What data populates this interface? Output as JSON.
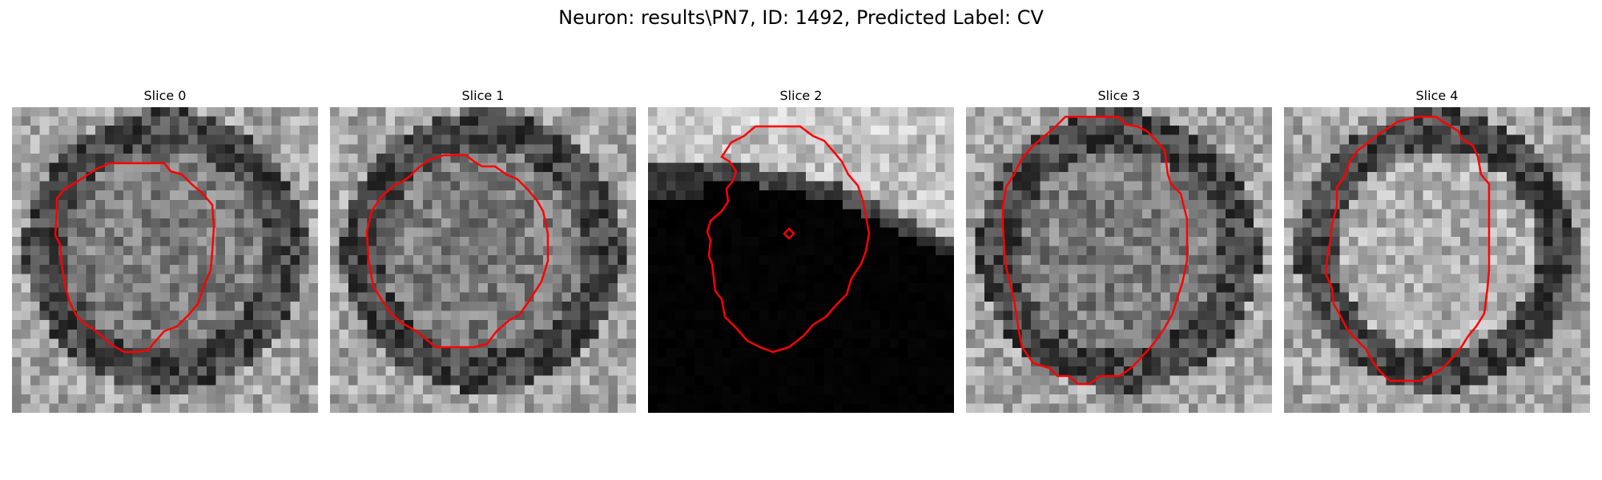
{
  "figure": {
    "suptitle": "Neuron: results\\PN7, ID: 1492, Predicted Label: CV"
  },
  "contour_color": "#ff0000",
  "panels": [
    {
      "title": "Slice 0"
    },
    {
      "title": "Slice 1"
    },
    {
      "title": "Slice 2"
    },
    {
      "title": "Slice 3"
    },
    {
      "title": "Slice 4"
    }
  ]
}
